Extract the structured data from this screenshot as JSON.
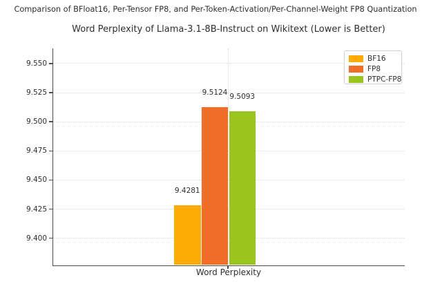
{
  "figure": {
    "suptitle": "Comparison of BFloat16, Per-Tensor FP8, and Per-Token-Activation/Per-Channel-Weight FP8 Quantization"
  },
  "chart_data": {
    "type": "bar",
    "title": "Word Perplexity of Llama-3.1-8B-Instruct on Wikitext (Lower is Better)",
    "categories": [
      "Word Perplexity"
    ],
    "series": [
      {
        "name": "BF16",
        "values": [
          9.4281
        ],
        "data_label": "9.4281",
        "color": "#FFAB05"
      },
      {
        "name": "FP8",
        "values": [
          9.5124
        ],
        "data_label": "9.5124",
        "color": "#F06E28"
      },
      {
        "name": "PTPC-FP8",
        "values": [
          9.5093
        ],
        "data_label": "9.5093",
        "color": "#9AC51F"
      }
    ],
    "xlabel": "Word Perplexity",
    "ylabel": "",
    "ylim": [
      9.377,
      9.563
    ],
    "yticks": [
      9.4,
      9.425,
      9.45,
      9.475,
      9.5,
      9.525,
      9.55
    ],
    "ytick_labels": [
      "9.400",
      "9.425",
      "9.450",
      "9.475",
      "9.500",
      "9.525",
      "9.550"
    ],
    "grid": true,
    "legend_position": "upper right",
    "colors": {
      "axis": "#4A4A4A",
      "grid": "#D8D8D8",
      "text": "#2E2E2E",
      "background": "#FFFFFF"
    }
  }
}
